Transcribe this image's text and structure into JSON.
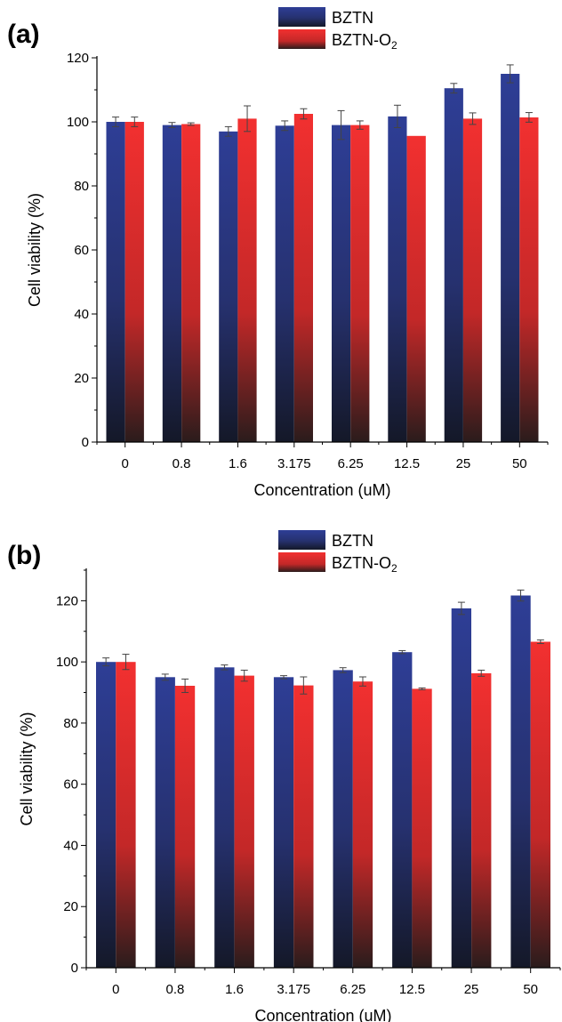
{
  "colors": {
    "bztn_top": "#2e3e96",
    "bztn_bottom": "#141828",
    "o2_top": "#f23030",
    "o2_bottom": "#2a1c1c",
    "axis": "#000000",
    "error": "#444444"
  },
  "chart_data": [
    {
      "type": "bar",
      "panel_label": "(a)",
      "categories": [
        "0",
        "0.8",
        "1.6",
        "3.175",
        "6.25",
        "12.5",
        "25",
        "50"
      ],
      "series": [
        {
          "name": "BZTN",
          "legend_main": "BZTN",
          "legend_sub": "",
          "values": [
            100,
            99,
            97,
            98.8,
            99,
            101.7,
            110.5,
            115
          ],
          "errors": [
            1.5,
            0.8,
            1.5,
            1.5,
            4.5,
            3.5,
            1.5,
            2.8
          ]
        },
        {
          "name": "BZTN-O2",
          "legend_main": "BZTN-O",
          "legend_sub": "2",
          "values": [
            100,
            99.3,
            101,
            102.5,
            99,
            95.6,
            101,
            101.4
          ],
          "errors": [
            1.5,
            0.4,
            4.0,
            1.6,
            1.3,
            0.0,
            1.8,
            1.5
          ]
        }
      ],
      "xlabel": "Concentration (uM)",
      "ylabel": "Cell viability (%)",
      "ylim": [
        0,
        120
      ],
      "yticks": [
        0,
        20,
        40,
        60,
        80,
        100,
        120
      ],
      "legend_position": "top-center"
    },
    {
      "type": "bar",
      "panel_label": "(b)",
      "categories": [
        "0",
        "0.8",
        "1.6",
        "3.175",
        "6.25",
        "12.5",
        "25",
        "50"
      ],
      "series": [
        {
          "name": "BZTN",
          "legend_main": "BZTN",
          "legend_sub": "",
          "values": [
            100,
            95,
            98.2,
            95,
            97.3,
            103.2,
            117.5,
            121.7
          ],
          "errors": [
            1.3,
            1.0,
            0.8,
            0.5,
            0.8,
            0.5,
            2.0,
            1.8
          ]
        },
        {
          "name": "BZTN-O2",
          "legend_main": "BZTN-O",
          "legend_sub": "2",
          "values": [
            100,
            92.2,
            95.5,
            92.3,
            93.6,
            91.2,
            96.3,
            106.6
          ],
          "errors": [
            2.5,
            2.2,
            1.8,
            2.8,
            1.5,
            0.3,
            1.0,
            0.6
          ]
        }
      ],
      "xlabel": "Concentration (uM)",
      "ylabel": "Cell viability (%)",
      "ylim": [
        0,
        130
      ],
      "yticks": [
        0,
        20,
        40,
        60,
        80,
        100,
        120
      ],
      "legend_position": "top-center"
    }
  ]
}
